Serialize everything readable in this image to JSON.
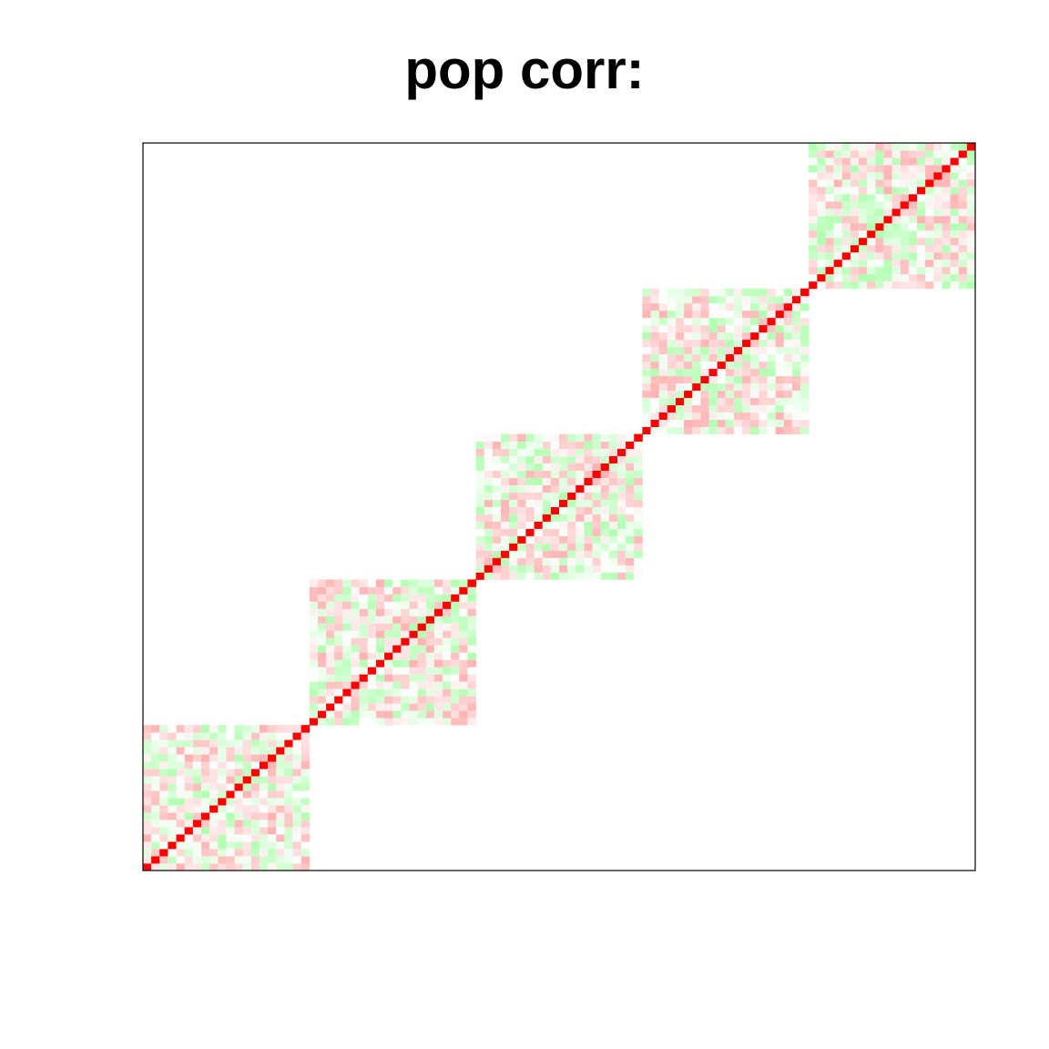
{
  "chart_data": {
    "type": "heatmap",
    "title": "pop corr:",
    "xlabel": "",
    "ylabel": "",
    "n": 100,
    "block_size": 20,
    "block_count": 5,
    "value_range": [
      -1,
      1
    ],
    "diagonal_value": 1,
    "off_block_value": 0,
    "off_diagonal_estimate_range": [
      -0.3,
      0.3
    ],
    "origin": "bottom-left",
    "grid": false,
    "legend": "none",
    "axes_ticks": false,
    "colors": {
      "positive": "#ff0000",
      "negative": "#00ff00",
      "zero": "#ffffff",
      "frame": "#000000"
    }
  }
}
